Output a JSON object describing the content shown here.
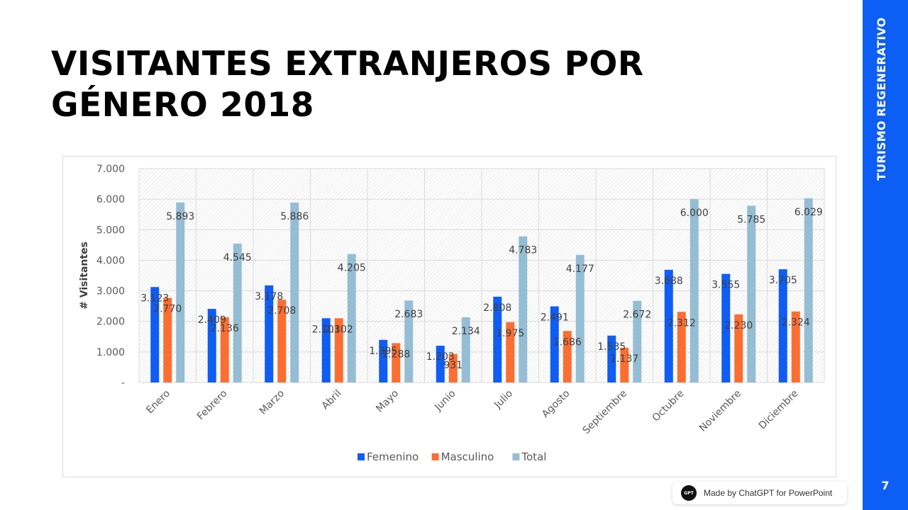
{
  "slide": {
    "title_line1": "VISITANTES EXTRANJEROS POR",
    "title_line2": "GÉNERO 2018",
    "side_label": "TURISMO REGENERATIVO",
    "page_number": "7",
    "badge_text": "Made by ChatGPT for PowerPoint",
    "badge_logo_text": "GPT",
    "accent_color": "#0d5ef5"
  },
  "chart_data": {
    "type": "bar",
    "title": "",
    "xlabel": "",
    "ylabel": "# Visitantes",
    "ylim": [
      0,
      7000
    ],
    "yticks": [
      0,
      1000,
      2000,
      3000,
      4000,
      5000,
      6000,
      7000
    ],
    "ytick_labels": [
      "-",
      "1.000",
      "2.000",
      "3.000",
      "4.000",
      "5.000",
      "6.000",
      "7.000"
    ],
    "grid": true,
    "legend_position": "bottom",
    "categories": [
      "Enero",
      "Febrero",
      "Marzo",
      "Abril",
      "Mayo",
      "Junio",
      "Julio",
      "Agosto",
      "Septiembre",
      "Octubre",
      "Noviembre",
      "Diciembre"
    ],
    "series": [
      {
        "name": "Femenino",
        "color": "#0f5df2",
        "values": [
          3123,
          2409,
          3178,
          2103,
          1395,
          1203,
          2808,
          2491,
          1535,
          3688,
          3555,
          3705
        ],
        "labels": [
          "3.123",
          "2.409",
          "3.178",
          "2.103",
          "1.395",
          "1.203",
          "2.808",
          "2.491",
          "1.535",
          "3.688",
          "3.555",
          "3.705"
        ]
      },
      {
        "name": "Masculino",
        "color": "#fb6e31",
        "values": [
          2770,
          2136,
          2708,
          2102,
          1288,
          931,
          1975,
          1686,
          1137,
          2312,
          2230,
          2324
        ],
        "labels": [
          "2.770",
          "2.136",
          "2.708",
          "2.102",
          "1.288",
          "931",
          "1.975",
          "1.686",
          "1.137",
          "2.312",
          "2.230",
          "2.324"
        ]
      },
      {
        "name": "Total",
        "color": "#95bdd3",
        "values": [
          5893,
          4545,
          5886,
          4205,
          2683,
          2134,
          4783,
          4177,
          2672,
          6000,
          5785,
          6029
        ],
        "labels": [
          "5.893",
          "4.545",
          "5.886",
          "4.205",
          "2.683",
          "2.134",
          "4.783",
          "4.177",
          "2.672",
          "6.000",
          "5.785",
          "6.029"
        ]
      }
    ]
  }
}
